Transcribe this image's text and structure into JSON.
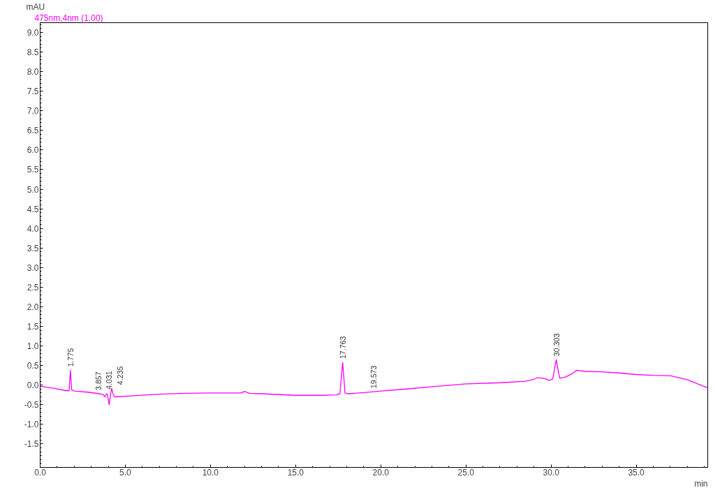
{
  "chart_data": {
    "type": "line",
    "xlabel": "min",
    "ylabel": "mAU",
    "x": [
      0,
      0.8,
      1.5,
      1.7,
      1.775,
      1.85,
      2.0,
      2.8,
      3.5,
      3.7,
      3.8,
      3.9,
      3.95,
      4.05,
      4.15,
      4.2,
      4.3,
      4.4,
      5.5,
      7,
      8.5,
      10,
      11,
      11.8,
      12,
      12.3,
      13,
      15,
      16.5,
      17.4,
      17.6,
      17.763,
      17.9,
      18.1,
      19,
      20,
      21.5,
      23,
      25,
      27,
      28.5,
      29,
      29.2,
      29.6,
      29.9,
      30.1,
      30.303,
      30.5,
      30.8,
      31.2,
      31.5,
      32,
      33,
      34,
      35,
      36,
      37,
      38,
      39.2
    ],
    "series": [
      {
        "name": "475nm,4nm (1.00)",
        "color": "#ff00ff",
        "values": [
          -0.03,
          -0.08,
          -0.14,
          -0.14,
          0.38,
          -0.12,
          -0.15,
          -0.18,
          -0.22,
          -0.24,
          -0.3,
          -0.22,
          -0.24,
          -0.5,
          -0.2,
          -0.08,
          -0.25,
          -0.3,
          -0.27,
          -0.23,
          -0.21,
          -0.2,
          -0.2,
          -0.2,
          -0.16,
          -0.21,
          -0.22,
          -0.26,
          -0.26,
          -0.25,
          -0.22,
          0.58,
          -0.2,
          -0.22,
          -0.19,
          -0.15,
          -0.1,
          -0.04,
          0.03,
          0.06,
          0.1,
          0.15,
          0.19,
          0.17,
          0.12,
          0.16,
          0.65,
          0.18,
          0.2,
          0.28,
          0.38,
          0.35,
          0.34,
          0.31,
          0.27,
          0.25,
          0.24,
          0.14,
          -0.07
        ]
      }
    ],
    "xlim": [
      0,
      39.2
    ],
    "ylim": [
      -2.1,
      9.25
    ],
    "xticks": [
      {
        "value": 0,
        "label": "0.0"
      },
      {
        "value": 5,
        "label": "5.0"
      },
      {
        "value": 10,
        "label": "10.0"
      },
      {
        "value": 15,
        "label": "15.0"
      },
      {
        "value": 20,
        "label": "20.0"
      },
      {
        "value": 25,
        "label": "25.0"
      },
      {
        "value": 30,
        "label": "30.0"
      },
      {
        "value": 35,
        "label": "35.0"
      }
    ],
    "yticks": [
      {
        "value": -1.5,
        "label": "-1.5"
      },
      {
        "value": -1,
        "label": "-1.0"
      },
      {
        "value": -0.5,
        "label": "-0.5"
      },
      {
        "value": 0,
        "label": "0.0"
      },
      {
        "value": 0.5,
        "label": "0.5"
      },
      {
        "value": 1,
        "label": "1.0"
      },
      {
        "value": 1.5,
        "label": "1.5"
      },
      {
        "value": 2,
        "label": "2.0"
      },
      {
        "value": 2.5,
        "label": "2.5"
      },
      {
        "value": 3,
        "label": "3.0"
      },
      {
        "value": 3.5,
        "label": "3.5"
      },
      {
        "value": 4,
        "label": "4.0"
      },
      {
        "value": 4.5,
        "label": "4.5"
      },
      {
        "value": 5,
        "label": "5.0"
      },
      {
        "value": 5.5,
        "label": "5.5"
      },
      {
        "value": 6,
        "label": "6.0"
      },
      {
        "value": 6.5,
        "label": "6.5"
      },
      {
        "value": 7,
        "label": "7.0"
      },
      {
        "value": 7.5,
        "label": "7.5"
      },
      {
        "value": 8,
        "label": "8.0"
      },
      {
        "value": 8.5,
        "label": "8.5"
      },
      {
        "value": 9,
        "label": "9.0"
      }
    ],
    "annotations": [
      {
        "text": "1.775",
        "x": 1.775,
        "y": 0.38
      },
      {
        "text": "3.857",
        "x": 3.857,
        "y": -0.22
      },
      {
        "text": "4.031",
        "x": 4.031,
        "y": -0.2
      },
      {
        "text": "4.235",
        "x": 4.235,
        "y": -0.08
      },
      {
        "text": "17.763",
        "x": 17.763,
        "y": 0.58
      },
      {
        "text": "19.573",
        "x": 19.573,
        "y": -0.17
      },
      {
        "text": "30.303",
        "x": 30.303,
        "y": 0.65
      }
    ],
    "grid": false,
    "marker": "none",
    "line_style": "solid"
  }
}
